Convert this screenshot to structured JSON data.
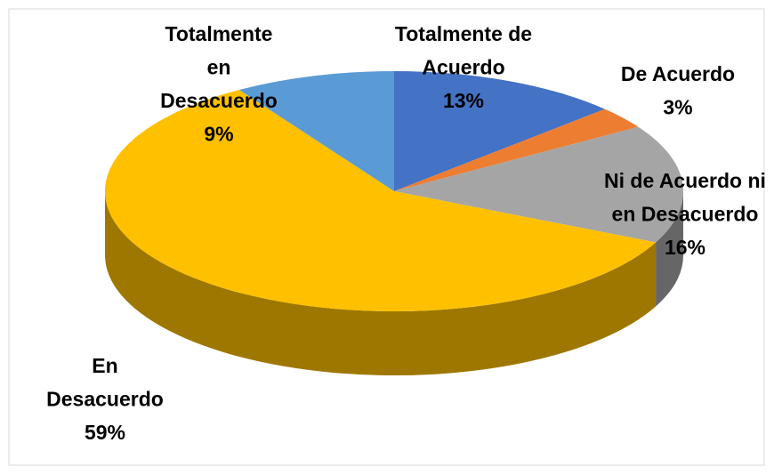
{
  "chart_data": {
    "type": "pie",
    "categories": [
      "Totalmente de Acuerdo",
      "De Acuerdo",
      "Ni de Acuerdo ni en Desacuerdo",
      "En Desacuerdo",
      "Totalmente en Desacuerdo"
    ],
    "values": [
      13,
      3,
      16,
      59,
      9
    ],
    "value_labels": [
      "13%",
      "3%",
      "16%",
      "59%",
      "9%"
    ],
    "colors": [
      "#4472c4",
      "#ed7d31",
      "#a5a5a5",
      "#ffc000",
      "#5b9bd5"
    ],
    "three_d": true
  }
}
